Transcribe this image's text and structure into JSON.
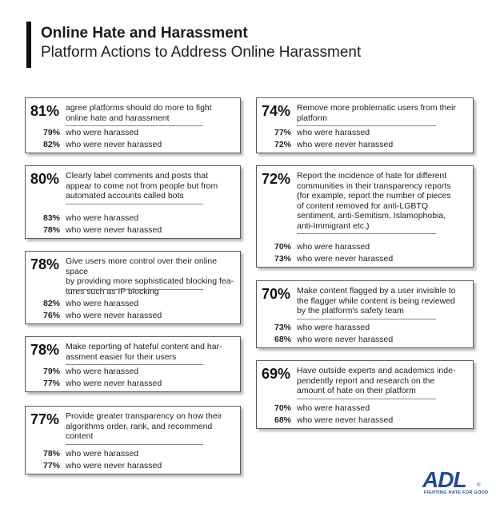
{
  "header": {
    "title": "Online Hate and Harassment",
    "subtitle": "Platform Actions to Address Online Harassment"
  },
  "left_column": [
    {
      "pct": "81%",
      "text": [
        "agree platforms should do more to fight",
        "online hate and harassment"
      ],
      "harassed": "79%",
      "never": "82%"
    },
    {
      "pct": "80%",
      "text": [
        "Clearly label comments and posts that",
        "appear to come not from people but from",
        "automated accounts called bots"
      ],
      "harassed": "83%",
      "never": "78%"
    },
    {
      "pct": "78%",
      "text": [
        "Give users more control over their online space",
        "by providing more sophisticated blocking fea-",
        "tures such as IP blocking"
      ],
      "harassed": "82%",
      "never": "76%"
    },
    {
      "pct": "78%",
      "text": [
        "Make reporting of hateful content and har-",
        "assment easier for their users"
      ],
      "harassed": "79%",
      "never": "77%"
    },
    {
      "pct": "77%",
      "text": [
        "Provide greater transparency on how their",
        "algorithms order, rank, and recommend",
        "content"
      ],
      "harassed": "78%",
      "never": "77%"
    }
  ],
  "right_column": [
    {
      "pct": "74%",
      "text": [
        "Remove more problematic users from their",
        "platform"
      ],
      "harassed": "77%",
      "never": "72%"
    },
    {
      "pct": "72%",
      "text": [
        "Report the incidence of hate for different",
        "communities in their transparency reports",
        "(for example, report the number of pieces",
        "of content removed for anti-LGBTQ",
        "sentiment, anti-Semitism, Islamophobia,",
        "anti-Immigrant etc.)"
      ],
      "harassed": "70%",
      "never": "73%"
    },
    {
      "pct": "70%",
      "text": [
        "Make content flagged by a user invisible to",
        "the flagger while content is being reviewed",
        "by the platform's safety team"
      ],
      "harassed": "73%",
      "never": "68%"
    },
    {
      "pct": "69%",
      "text": [
        "Have outside experts and academics inde-",
        "pendently report and research on the",
        "amount of hate on their platform"
      ],
      "harassed": "70%",
      "never": "68%"
    }
  ],
  "labels": {
    "harassed": "who were harassed",
    "never": "who were never harassed"
  },
  "logo": {
    "text": "ADL",
    "dot": "®",
    "tagline": "FIGHTING HATE FOR GOOD"
  },
  "colors": {
    "logo": "#1e4b9a",
    "border": "#5a5a5a"
  }
}
